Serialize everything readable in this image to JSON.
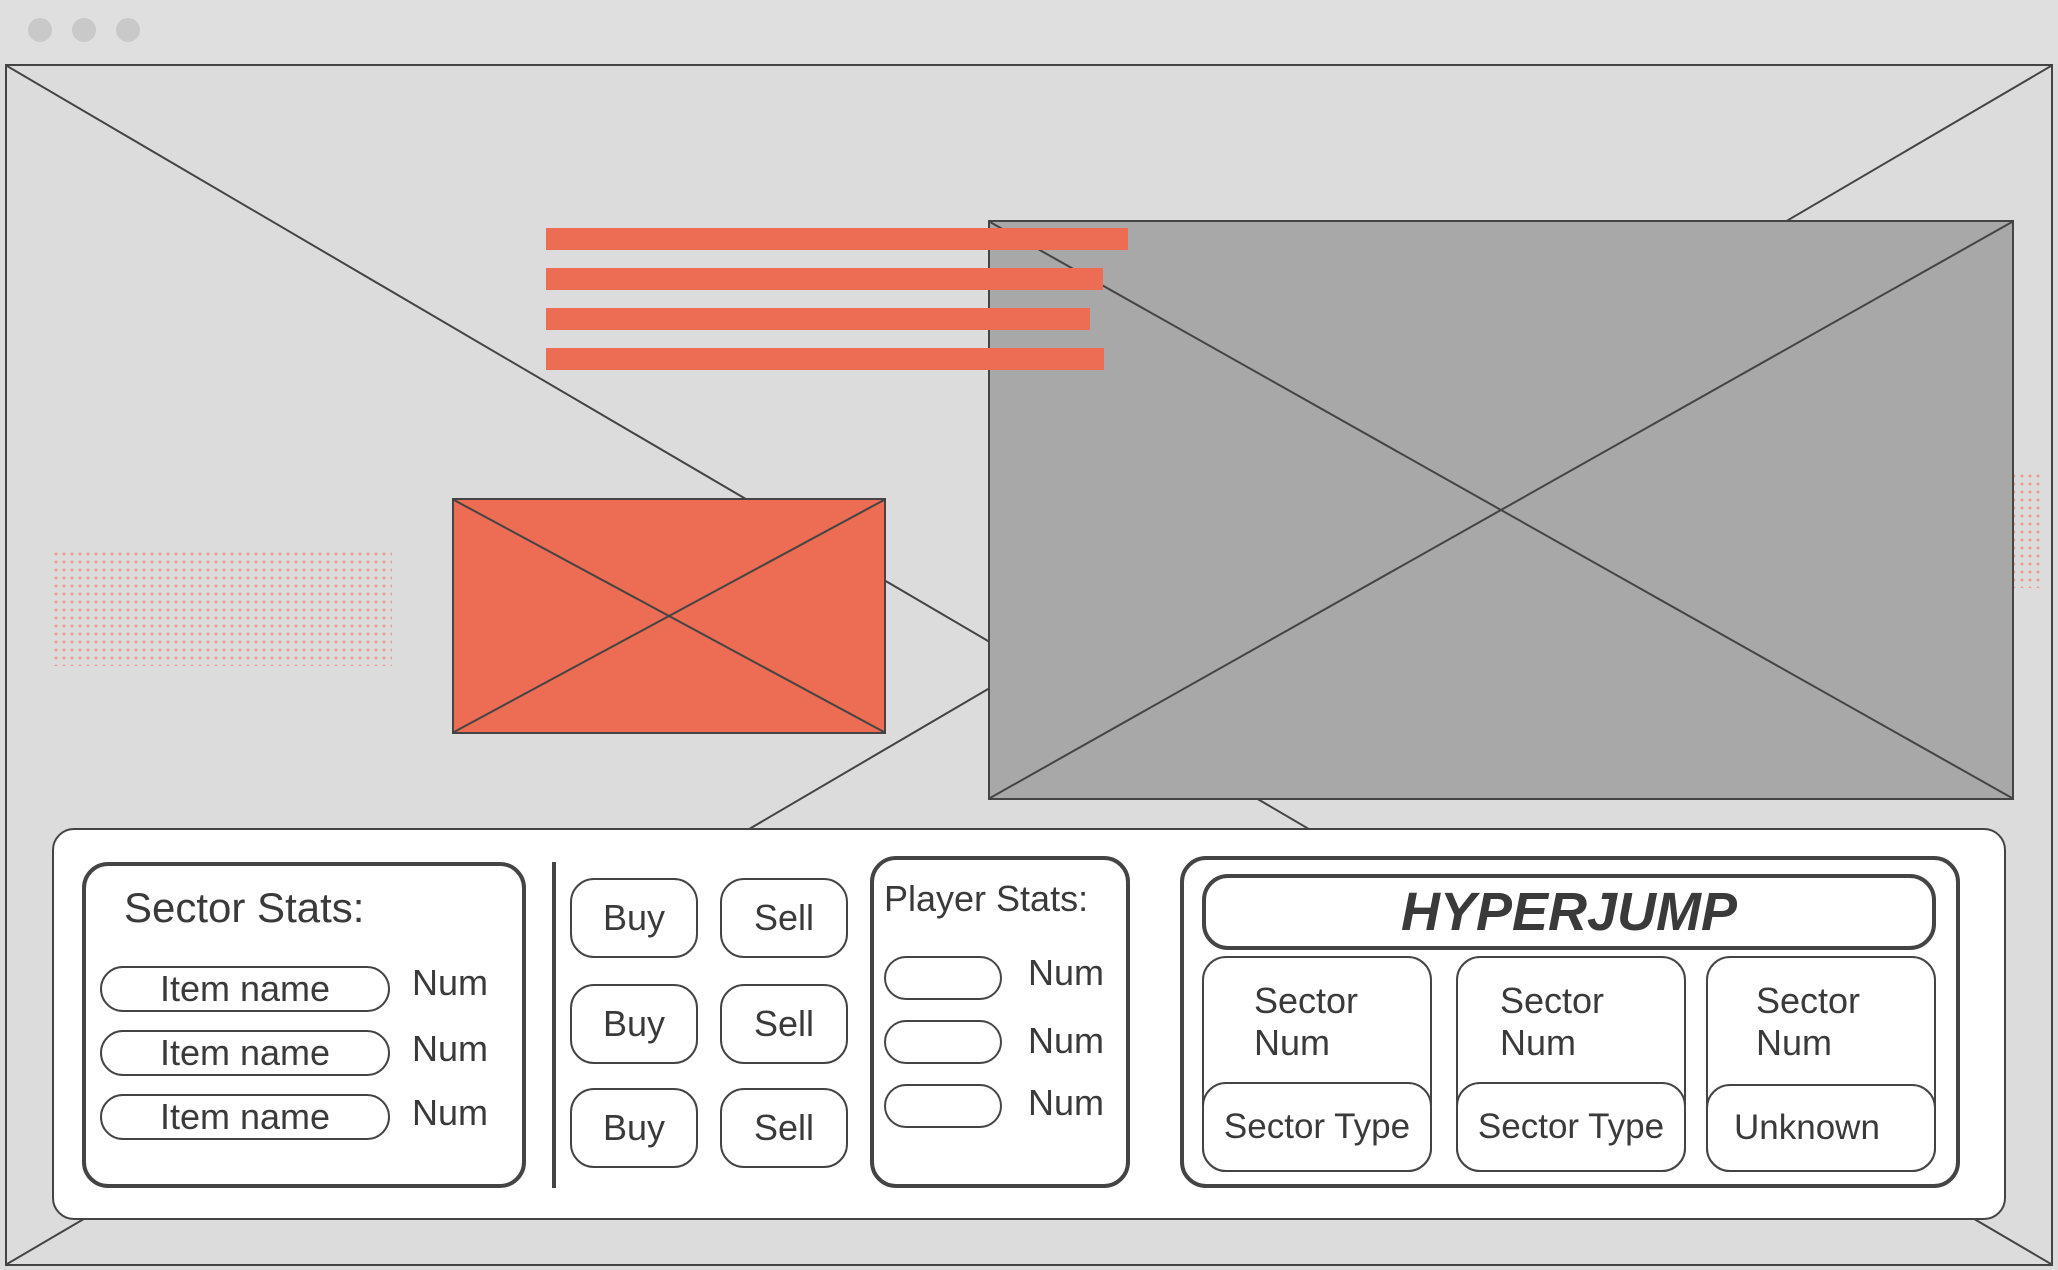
{
  "colors": {
    "accent": "#ec6d53",
    "panel_gray": "#a8a8a8",
    "background": "#dcdcdc",
    "stroke": "#444444"
  },
  "sector_stats": {
    "title": "Sector Stats:",
    "items": [
      {
        "name": "Item name",
        "value": "Num"
      },
      {
        "name": "Item name",
        "value": "Num"
      },
      {
        "name": "Item name",
        "value": "Num"
      }
    ]
  },
  "trade": {
    "rows": [
      {
        "buy": "Buy",
        "sell": "Sell"
      },
      {
        "buy": "Buy",
        "sell": "Sell"
      },
      {
        "buy": "Buy",
        "sell": "Sell"
      }
    ]
  },
  "player_stats": {
    "title": "Player Stats:",
    "items": [
      {
        "value": "Num"
      },
      {
        "value": "Num"
      },
      {
        "value": "Num"
      }
    ]
  },
  "hyperjump": {
    "title": "HYPERJUMP",
    "sectors": [
      {
        "line1": "Sector",
        "line2": "Num",
        "type": "Sector Type"
      },
      {
        "line1": "Sector",
        "line2": "Num",
        "type": "Sector Type"
      },
      {
        "line1": "Sector",
        "line2": "Num",
        "type": "Unknown"
      }
    ]
  }
}
